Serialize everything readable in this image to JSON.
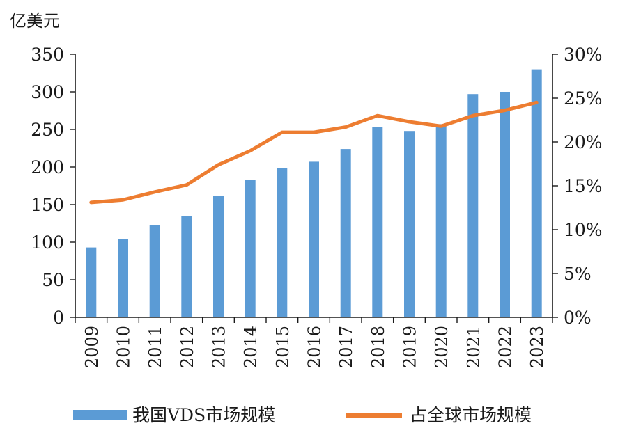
{
  "chart_data": {
    "type": "bar",
    "y_unit_label": "亿美元",
    "categories": [
      "2009",
      "2010",
      "2011",
      "2012",
      "2013",
      "2014",
      "2015",
      "2016",
      "2017",
      "2018",
      "2019",
      "2020",
      "2021",
      "2022",
      "2023"
    ],
    "series": [
      {
        "name": "我国VDS市场规模",
        "type": "bar",
        "axis": "left",
        "color": "#5b9bd5",
        "values": [
          93,
          104,
          123,
          135,
          162,
          183,
          199,
          207,
          224,
          253,
          248,
          257,
          297,
          300,
          330
        ]
      },
      {
        "name": "占全球市场规模",
        "type": "line",
        "axis": "right",
        "color": "#ed7d31",
        "values": [
          0.131,
          0.134,
          0.143,
          0.151,
          0.174,
          0.19,
          0.211,
          0.211,
          0.217,
          0.23,
          0.223,
          0.218,
          0.23,
          0.236,
          0.245
        ]
      }
    ],
    "left_axis": {
      "ylim": [
        0,
        350
      ],
      "ticks": [
        0,
        50,
        100,
        150,
        200,
        250,
        300,
        350
      ],
      "tick_labels": [
        "0",
        "50",
        "100",
        "150",
        "200",
        "250",
        "300",
        "350"
      ]
    },
    "right_axis": {
      "ylim": [
        0,
        0.3
      ],
      "ticks": [
        0,
        0.05,
        0.1,
        0.15,
        0.2,
        0.25,
        0.3
      ],
      "tick_labels": [
        "0%",
        "5%",
        "10%",
        "15%",
        "20%",
        "25%",
        "30%"
      ]
    },
    "grid": false,
    "legend_position": "bottom"
  }
}
